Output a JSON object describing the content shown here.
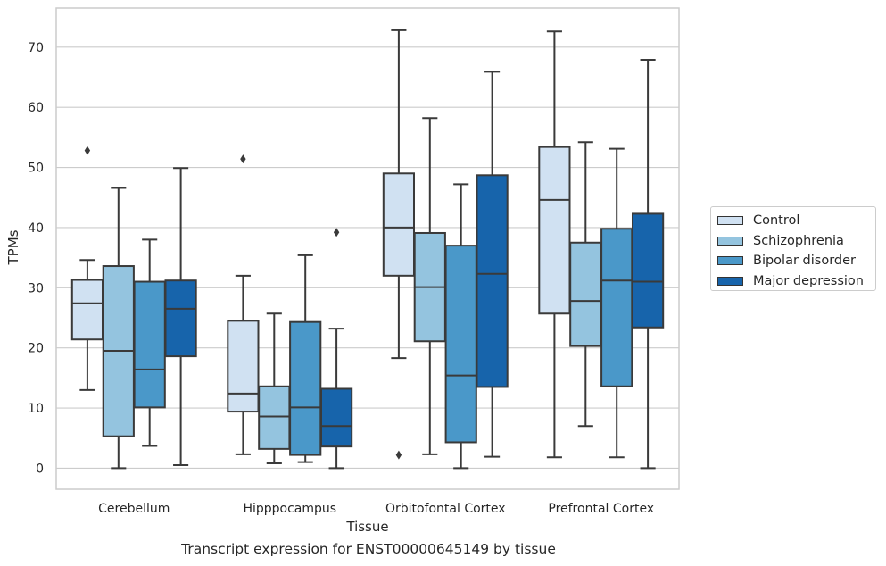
{
  "chart_data": {
    "type": "box",
    "title": "",
    "caption": "Transcript expression for ENST00000645149 by tissue",
    "xlabel": "Tissue",
    "ylabel": "TPMs",
    "ylim": [
      -3.5,
      76.5
    ],
    "yticks": [
      0,
      10,
      20,
      30,
      40,
      50,
      60,
      70
    ],
    "grid": "horizontal",
    "legend_position": "right",
    "categories": [
      "Cerebellum",
      "Hipppocampus",
      "Orbitofontal Cortex",
      "Prefrontal Cortex"
    ],
    "series": [
      {
        "name": "Control",
        "color": "#d0e1f2",
        "boxes": [
          {
            "min": 13.0,
            "q1": 21.4,
            "median": 27.4,
            "q3": 31.3,
            "max": 34.6,
            "outliers": [
              52.8
            ]
          },
          {
            "min": 2.3,
            "q1": 9.4,
            "median": 12.4,
            "q3": 24.5,
            "max": 32.0,
            "outliers": [
              51.4
            ]
          },
          {
            "min": 18.3,
            "q1": 32.0,
            "median": 40.0,
            "q3": 49.0,
            "max": 72.8,
            "outliers": [
              2.2
            ]
          },
          {
            "min": 1.8,
            "q1": 25.7,
            "median": 44.6,
            "q3": 53.4,
            "max": 72.6,
            "outliers": []
          }
        ]
      },
      {
        "name": "Schizophrenia",
        "color": "#94c4df",
        "boxes": [
          {
            "min": 0.0,
            "q1": 5.3,
            "median": 19.5,
            "q3": 33.6,
            "max": 46.6,
            "outliers": []
          },
          {
            "min": 0.8,
            "q1": 3.2,
            "median": 8.6,
            "q3": 13.6,
            "max": 25.7,
            "outliers": []
          },
          {
            "min": 2.3,
            "q1": 21.1,
            "median": 30.1,
            "q3": 39.1,
            "max": 58.2,
            "outliers": []
          },
          {
            "min": 7.0,
            "q1": 20.3,
            "median": 27.8,
            "q3": 37.5,
            "max": 54.2,
            "outliers": []
          }
        ]
      },
      {
        "name": "Bipolar disorder",
        "color": "#4a98c9",
        "boxes": [
          {
            "min": 3.7,
            "q1": 10.1,
            "median": 16.4,
            "q3": 31.0,
            "max": 38.0,
            "outliers": []
          },
          {
            "min": 1.0,
            "q1": 2.2,
            "median": 10.1,
            "q3": 24.3,
            "max": 35.4,
            "outliers": []
          },
          {
            "min": 0.0,
            "q1": 4.3,
            "median": 15.4,
            "q3": 37.0,
            "max": 47.2,
            "outliers": []
          },
          {
            "min": 1.8,
            "q1": 13.6,
            "median": 31.2,
            "q3": 39.8,
            "max": 53.1,
            "outliers": []
          }
        ]
      },
      {
        "name": "Major depression",
        "color": "#1764ab",
        "boxes": [
          {
            "min": 0.5,
            "q1": 18.6,
            "median": 26.5,
            "q3": 31.2,
            "max": 49.9,
            "outliers": []
          },
          {
            "min": 0.0,
            "q1": 3.6,
            "median": 7.0,
            "q3": 13.2,
            "max": 23.2,
            "outliers": [
              39.2
            ]
          },
          {
            "min": 1.9,
            "q1": 13.5,
            "median": 32.3,
            "q3": 48.7,
            "max": 65.9,
            "outliers": []
          },
          {
            "min": 0.0,
            "q1": 23.4,
            "median": 31.0,
            "q3": 42.3,
            "max": 67.9,
            "outliers": []
          }
        ]
      }
    ]
  }
}
